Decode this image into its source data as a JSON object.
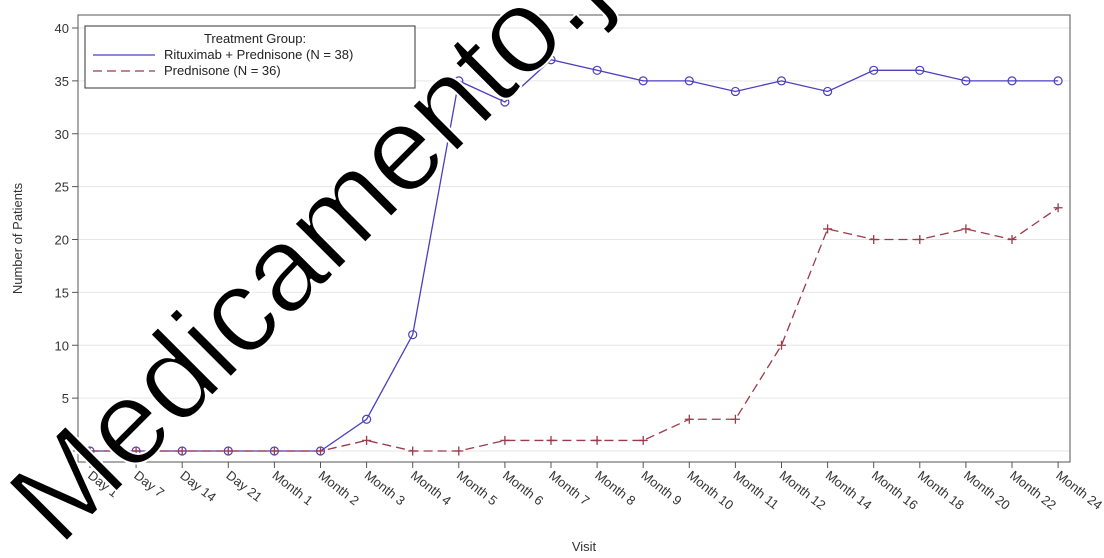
{
  "chart_data": {
    "type": "line",
    "xlabel": "Visit",
    "ylabel": "Number of Patients",
    "ylim": [
      0,
      40
    ],
    "yticks": [
      0,
      5,
      10,
      15,
      20,
      25,
      30,
      35,
      40
    ],
    "grid": true,
    "legend": {
      "title": "Treatment Group:",
      "placement": "top-left"
    },
    "categories": [
      "Day 1",
      "Day 7",
      "Day 14",
      "Day 21",
      "Month 1",
      "Month 2",
      "Month 3",
      "Month 4",
      "Month 5",
      "Month 6",
      "Month 7",
      "Month 8",
      "Month 9",
      "Month 10",
      "Month 11",
      "Month 12",
      "Month 14",
      "Month 16",
      "Month 18",
      "Month 20",
      "Month 22",
      "Month 24"
    ],
    "series": [
      {
        "name": "Rituximab + Prednisone (N = 38)",
        "color": "#4b3fbf",
        "marker": "circle",
        "line": "solid",
        "values": [
          0,
          0,
          0,
          0,
          0,
          0,
          3,
          11,
          35,
          33,
          37,
          36,
          35,
          35,
          34,
          35,
          34,
          36,
          36,
          35,
          35,
          35
        ]
      },
      {
        "name": "Prednisone (N = 36)",
        "color": "#9b3a4a",
        "marker": "plus",
        "line": "dashed",
        "values": [
          0,
          0,
          0,
          0,
          0,
          0,
          1,
          0,
          0,
          1,
          1,
          1,
          1,
          3,
          3,
          10,
          21,
          20,
          20,
          21,
          20,
          23
        ]
      }
    ]
  },
  "watermark": "Medicamento.ja"
}
